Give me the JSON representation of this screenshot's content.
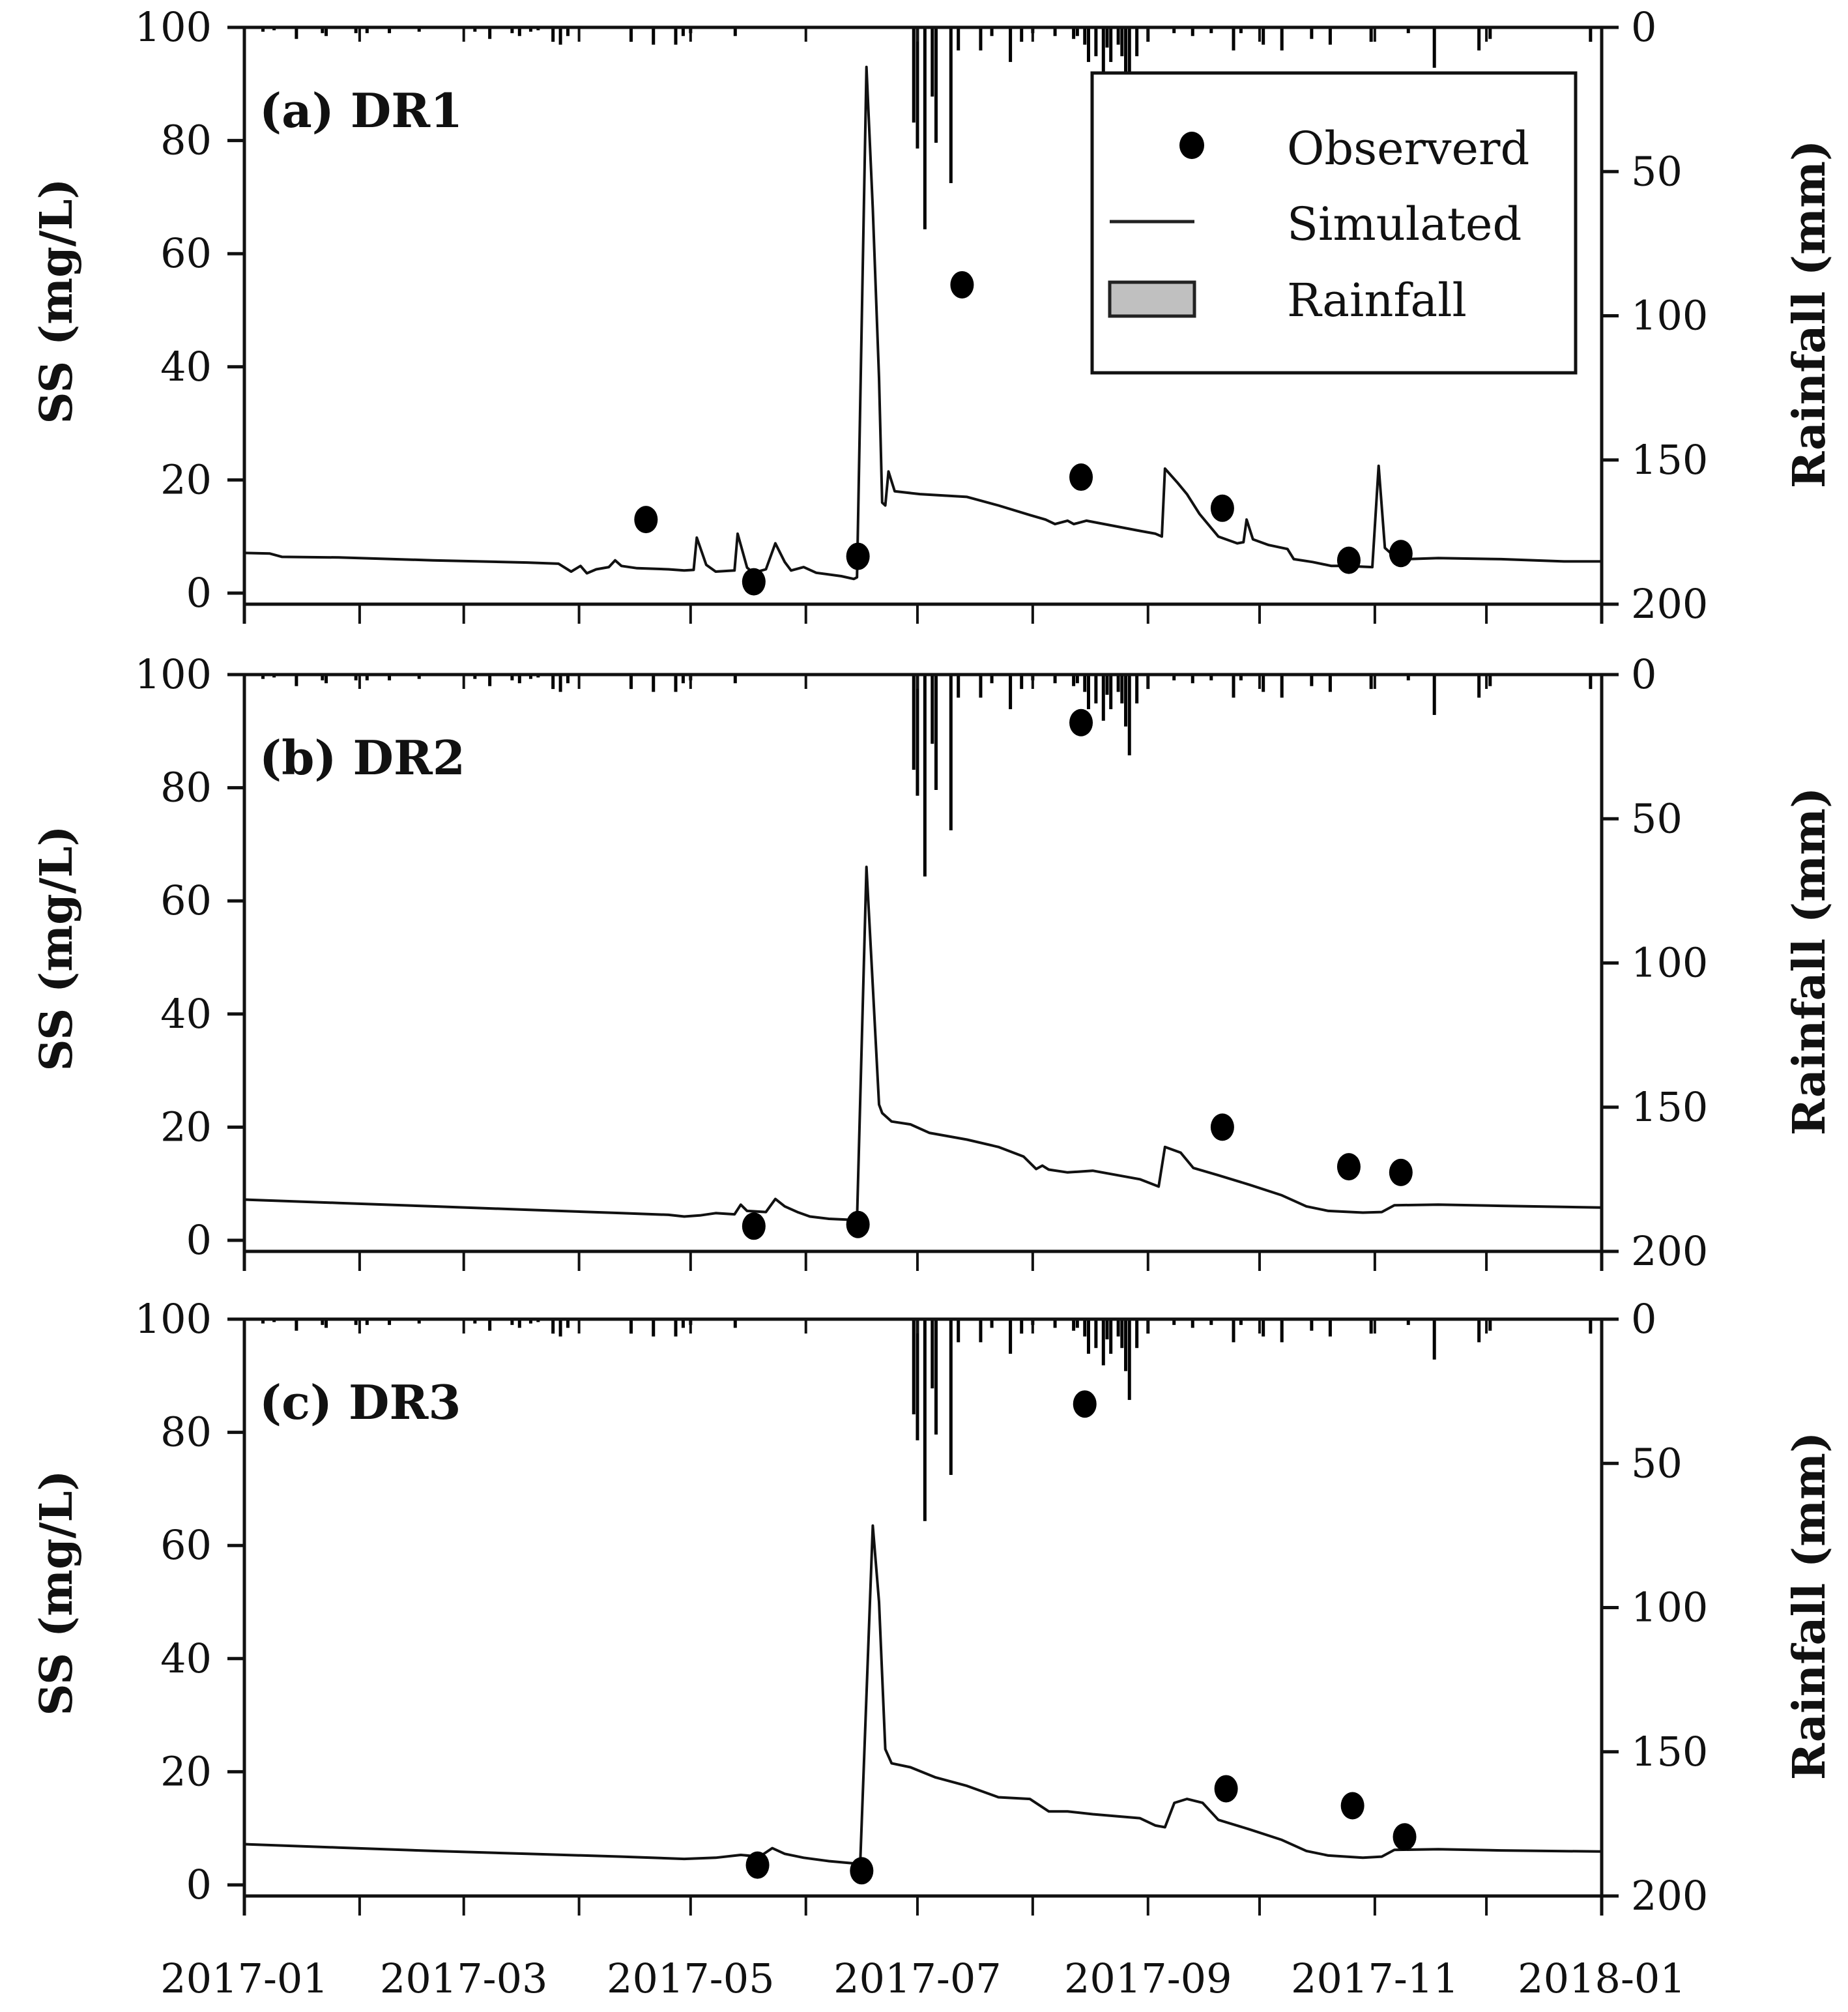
{
  "chart_data": {
    "type": "line",
    "figure_description": "Observed vs simulated suspended solids with daily rainfall, three drainage sites",
    "x_axis": {
      "type": "date",
      "range": [
        "2017-01-01",
        "2018-01-01"
      ],
      "tick_labels": [
        "2017-01",
        "2017-03",
        "2017-05",
        "2017-07",
        "2017-09",
        "2017-11",
        "2018-01"
      ],
      "minor_ticks": "monthly"
    },
    "y_left": {
      "label": "SS (mg/L)",
      "range": [
        0,
        100
      ],
      "ticks": [
        "0",
        "20",
        "40",
        "60",
        "80",
        "100"
      ]
    },
    "y_right": {
      "label": "Rainfall (mm)",
      "range": [
        0,
        200
      ],
      "inverted": true,
      "ticks": [
        "0",
        "50",
        "100",
        "150",
        "200"
      ]
    },
    "legend": {
      "placement": "top-right of panel (a)",
      "entries": [
        {
          "label": "Observerd",
          "symbol": "filled-circle"
        },
        {
          "label": "Simulated",
          "symbol": "line"
        },
        {
          "label": "Rainfall",
          "symbol": "gray-box",
          "color": "#c0c0c0"
        }
      ]
    },
    "rainfall": {
      "unit": "mm",
      "days": [
        [
          5,
          1.5
        ],
        [
          8,
          1
        ],
        [
          14,
          4
        ],
        [
          21,
          2
        ],
        [
          22,
          3
        ],
        [
          30,
          2
        ],
        [
          33,
          2
        ],
        [
          39,
          2
        ],
        [
          47,
          1.5
        ],
        [
          62,
          1.5
        ],
        [
          66,
          4
        ],
        [
          72,
          2
        ],
        [
          74,
          3
        ],
        [
          77,
          1.5
        ],
        [
          79,
          1
        ],
        [
          83,
          5
        ],
        [
          85,
          6
        ],
        [
          87,
          3
        ],
        [
          104,
          5
        ],
        [
          110,
          6
        ],
        [
          116,
          6
        ],
        [
          118,
          3
        ],
        [
          120,
          2
        ],
        [
          132,
          3
        ],
        [
          180,
          33
        ],
        [
          181,
          42
        ],
        [
          183,
          70
        ],
        [
          185,
          24
        ],
        [
          186,
          40
        ],
        [
          190,
          54
        ],
        [
          192,
          8
        ],
        [
          198,
          8
        ],
        [
          201,
          3
        ],
        [
          206,
          12
        ],
        [
          209,
          5
        ],
        [
          212,
          2
        ],
        [
          218,
          3
        ],
        [
          223,
          4
        ],
        [
          224,
          3
        ],
        [
          226,
          6
        ],
        [
          227,
          12
        ],
        [
          229,
          10
        ],
        [
          231,
          16
        ],
        [
          232,
          7
        ],
        [
          233,
          12
        ],
        [
          235,
          6
        ],
        [
          236,
          10
        ],
        [
          237,
          18
        ],
        [
          238,
          28
        ],
        [
          240,
          10
        ],
        [
          243,
          5
        ],
        [
          250,
          2
        ],
        [
          255,
          3
        ],
        [
          260,
          2
        ],
        [
          266,
          8
        ],
        [
          268,
          2
        ],
        [
          274,
          6
        ],
        [
          279,
          8
        ],
        [
          287,
          4
        ],
        [
          292,
          6
        ],
        [
          303,
          5
        ],
        [
          313,
          2
        ],
        [
          320,
          14
        ],
        [
          332,
          8
        ],
        [
          335,
          4
        ],
        [
          362,
          5
        ]
      ]
    },
    "panels": [
      {
        "label": "(a) DR1",
        "observed": [
          {
            "date": "2017-04-19",
            "value": 13
          },
          {
            "date": "2017-05-18",
            "value": 2
          },
          {
            "date": "2017-06-15",
            "value": 6.5
          },
          {
            "date": "2017-07-13",
            "value": 54.5
          },
          {
            "date": "2017-08-14",
            "value": 20.5
          },
          {
            "date": "2017-09-21",
            "value": 15
          },
          {
            "date": "2017-10-25",
            "value": 5.8
          },
          {
            "date": "2017-11-08",
            "value": 7
          }
        ],
        "simulated": [
          [
            0,
            7.1
          ],
          [
            8,
            7.0
          ],
          [
            12,
            6.4
          ],
          [
            30,
            6.3
          ],
          [
            60,
            5.8
          ],
          [
            90,
            5.4
          ],
          [
            100,
            5.2
          ],
          [
            104,
            3.8
          ],
          [
            107,
            4.8
          ],
          [
            109,
            3.5
          ],
          [
            112,
            4.2
          ],
          [
            116,
            4.6
          ],
          [
            118,
            5.8
          ],
          [
            120,
            4.8
          ],
          [
            125,
            4.4
          ],
          [
            135,
            4.2
          ],
          [
            140,
            4.0
          ],
          [
            143,
            4.1
          ],
          [
            144,
            9.8
          ],
          [
            147,
            5.0
          ],
          [
            150,
            3.8
          ],
          [
            156,
            4.0
          ],
          [
            157,
            10.5
          ],
          [
            160,
            4.5
          ],
          [
            162,
            3.6
          ],
          [
            166,
            4.2
          ],
          [
            169,
            8.8
          ],
          [
            172,
            5.5
          ],
          [
            174,
            4.0
          ],
          [
            178,
            4.6
          ],
          [
            182,
            3.6
          ],
          [
            190,
            3.0
          ],
          [
            194,
            2.5
          ],
          [
            195,
            2.8
          ],
          [
            198,
            93
          ],
          [
            200,
            68
          ],
          [
            202,
            38
          ],
          [
            203,
            16
          ],
          [
            204,
            15.5
          ],
          [
            205,
            21.5
          ],
          [
            207,
            18
          ],
          [
            215,
            17.5
          ],
          [
            230,
            17
          ],
          [
            240,
            15.5
          ],
          [
            250,
            13.8
          ],
          [
            255,
            13
          ],
          [
            258,
            12.2
          ],
          [
            262,
            12.8
          ],
          [
            264,
            12.2
          ],
          [
            268,
            12.8
          ],
          [
            285,
            11
          ],
          [
            290,
            10.5
          ],
          [
            292,
            10
          ],
          [
            293,
            22
          ],
          [
            297,
            19.5
          ],
          [
            300,
            17.5
          ],
          [
            304,
            14
          ],
          [
            310,
            10
          ],
          [
            316,
            8.8
          ],
          [
            318,
            9
          ],
          [
            319,
            13
          ],
          [
            321,
            9.5
          ],
          [
            326,
            8.5
          ],
          [
            332,
            7.8
          ],
          [
            334,
            6
          ],
          [
            340,
            5.5
          ],
          [
            346,
            4.8
          ],
          [
            350,
            4.8
          ],
          [
            359,
            4.6
          ],
          [
            361,
            22.5
          ],
          [
            363,
            8
          ],
          [
            366,
            6.5
          ],
          [
            370,
            6.0
          ],
          [
            380,
            6.2
          ],
          [
            400,
            6.0
          ],
          [
            420,
            5.6
          ],
          [
            432,
            5.6
          ]
        ]
      },
      {
        "label": "(b) DR2",
        "observed": [
          {
            "date": "2017-05-18",
            "value": 2.5
          },
          {
            "date": "2017-06-15",
            "value": 2.8
          },
          {
            "date": "2017-08-14",
            "value": 91.5
          },
          {
            "date": "2017-09-21",
            "value": 20
          },
          {
            "date": "2017-10-25",
            "value": 13
          },
          {
            "date": "2017-11-08",
            "value": 12
          }
        ],
        "simulated": [
          [
            0,
            7.2
          ],
          [
            30,
            6.6
          ],
          [
            60,
            6.0
          ],
          [
            90,
            5.4
          ],
          [
            120,
            4.8
          ],
          [
            135,
            4.5
          ],
          [
            140,
            4.2
          ],
          [
            145,
            4.4
          ],
          [
            150,
            4.8
          ],
          [
            156,
            4.6
          ],
          [
            158,
            6.3
          ],
          [
            160,
            5.2
          ],
          [
            166,
            5.0
          ],
          [
            169,
            7.3
          ],
          [
            172,
            6.0
          ],
          [
            176,
            5.0
          ],
          [
            180,
            4.2
          ],
          [
            186,
            3.8
          ],
          [
            194,
            3.6
          ],
          [
            195,
            3.6
          ],
          [
            198,
            66
          ],
          [
            200,
            45
          ],
          [
            202,
            24
          ],
          [
            203,
            22.5
          ],
          [
            206,
            21
          ],
          [
            212,
            20.5
          ],
          [
            218,
            19
          ],
          [
            230,
            17.8
          ],
          [
            240,
            16.5
          ],
          [
            248,
            14.8
          ],
          [
            252,
            12.6
          ],
          [
            254,
            13.2
          ],
          [
            256,
            12.5
          ],
          [
            262,
            12
          ],
          [
            270,
            12.3
          ],
          [
            285,
            10.8
          ],
          [
            291,
            9.5
          ],
          [
            293,
            16.5
          ],
          [
            298,
            15.5
          ],
          [
            302,
            12.8
          ],
          [
            310,
            11.5
          ],
          [
            320,
            9.8
          ],
          [
            330,
            8
          ],
          [
            338,
            6
          ],
          [
            345,
            5.2
          ],
          [
            356,
            4.9
          ],
          [
            362,
            5.0
          ],
          [
            366,
            6.2
          ],
          [
            380,
            6.3
          ],
          [
            400,
            6.1
          ],
          [
            432,
            5.8
          ]
        ]
      },
      {
        "label": "(c) DR3",
        "observed": [
          {
            "date": "2017-05-19",
            "value": 3.5
          },
          {
            "date": "2017-06-16",
            "value": 2.5
          },
          {
            "date": "2017-08-15",
            "value": 85
          },
          {
            "date": "2017-09-22",
            "value": 17
          },
          {
            "date": "2017-10-26",
            "value": 14
          },
          {
            "date": "2017-11-09",
            "value": 8.5
          }
        ],
        "simulated": [
          [
            0,
            7.2
          ],
          [
            30,
            6.6
          ],
          [
            60,
            6.0
          ],
          [
            90,
            5.5
          ],
          [
            120,
            5.0
          ],
          [
            140,
            4.6
          ],
          [
            150,
            4.8
          ],
          [
            158,
            5.3
          ],
          [
            164,
            5.0
          ],
          [
            168,
            6.5
          ],
          [
            172,
            5.5
          ],
          [
            178,
            4.8
          ],
          [
            186,
            4.2
          ],
          [
            194,
            3.8
          ],
          [
            196,
            3.8
          ],
          [
            200,
            63.5
          ],
          [
            202,
            50
          ],
          [
            204,
            24
          ],
          [
            206,
            21.5
          ],
          [
            212,
            20.8
          ],
          [
            220,
            19
          ],
          [
            230,
            17.5
          ],
          [
            240,
            15.5
          ],
          [
            250,
            15.2
          ],
          [
            256,
            13
          ],
          [
            262,
            13
          ],
          [
            270,
            12.5
          ],
          [
            285,
            11.8
          ],
          [
            290,
            10.5
          ],
          [
            293,
            10.2
          ],
          [
            296,
            14.5
          ],
          [
            300,
            15.2
          ],
          [
            305,
            14.5
          ],
          [
            310,
            11.5
          ],
          [
            320,
            9.8
          ],
          [
            330,
            8
          ],
          [
            338,
            6
          ],
          [
            345,
            5.2
          ],
          [
            356,
            4.8
          ],
          [
            362,
            5.0
          ],
          [
            366,
            6.2
          ],
          [
            380,
            6.3
          ],
          [
            400,
            6.1
          ],
          [
            432,
            5.9
          ]
        ]
      }
    ]
  }
}
